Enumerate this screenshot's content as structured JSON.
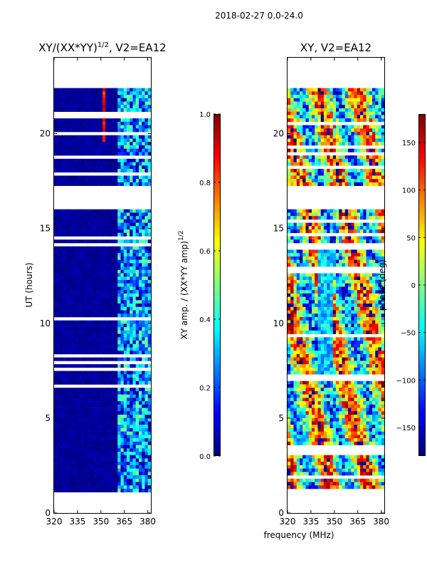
{
  "suptitle": "2018-02-27 0.0-24.0",
  "xlabel": "frequency (MHz)",
  "colors": {
    "jet_stops": [
      "#00007f",
      "#0000ff",
      "#007fff",
      "#00ffff",
      "#7fff7f",
      "#ffff00",
      "#ff7f00",
      "#ff0000",
      "#7f0000"
    ],
    "background": "#ffffff",
    "gap": "#ffffff"
  },
  "chart_data": [
    {
      "type": "heatmap",
      "title_main": "XY/(XX*YY)",
      "title_sup": "1/2",
      "title_rest": ", V2=EA12",
      "xlabel": "",
      "ylabel": "UT (hours)",
      "xlim": [
        320,
        382
      ],
      "ylim": [
        0,
        24
      ],
      "xticks": [
        "320",
        "335",
        "350",
        "365",
        "380"
      ],
      "xtick_values": [
        320,
        335,
        350,
        365,
        380
      ],
      "yticks": [
        "0",
        "5",
        "10",
        "15",
        "20"
      ],
      "ytick_values": [
        0,
        5,
        10,
        15,
        20
      ],
      "data_time_range": [
        1.1,
        22.4
      ],
      "gap_intervals": [
        [
          16.0,
          17.2
        ],
        [
          22.4,
          24.0
        ],
        [
          0.0,
          1.1
        ]
      ],
      "colorbar": {
        "label_main": "XY amp. / (XX*YY amp)",
        "label_sup": "1/2",
        "range": [
          0.0,
          1.0
        ],
        "ticks": [
          "0.0",
          "0.2",
          "0.4",
          "0.6",
          "0.8",
          "1.0"
        ],
        "tick_values": [
          0.0,
          0.2,
          0.4,
          0.6,
          0.8,
          1.0
        ]
      }
    },
    {
      "type": "heatmap",
      "title_main": "XY, V2=EA12",
      "xlabel": "frequency (MHz)",
      "ylabel": "",
      "xlim": [
        320,
        382
      ],
      "ylim": [
        0,
        24
      ],
      "xticks": [
        "320",
        "335",
        "350",
        "365",
        "380"
      ],
      "xtick_values": [
        320,
        335,
        350,
        365,
        380
      ],
      "yticks": [
        "0",
        "5",
        "10",
        "15",
        "20"
      ],
      "ytick_values": [
        0,
        5,
        10,
        15,
        20
      ],
      "data_time_range": [
        1.1,
        22.4
      ],
      "gap_intervals": [
        [
          16.0,
          17.2
        ],
        [
          22.4,
          24.0
        ],
        [
          0.0,
          1.1
        ]
      ],
      "colorbar": {
        "label": "phase (deg)",
        "range": [
          -180,
          180
        ],
        "ticks": [
          "−150",
          "−100",
          "−50",
          "0",
          "50",
          "100",
          "150"
        ],
        "tick_values": [
          -150,
          -100,
          -50,
          0,
          50,
          100,
          150
        ]
      }
    }
  ]
}
